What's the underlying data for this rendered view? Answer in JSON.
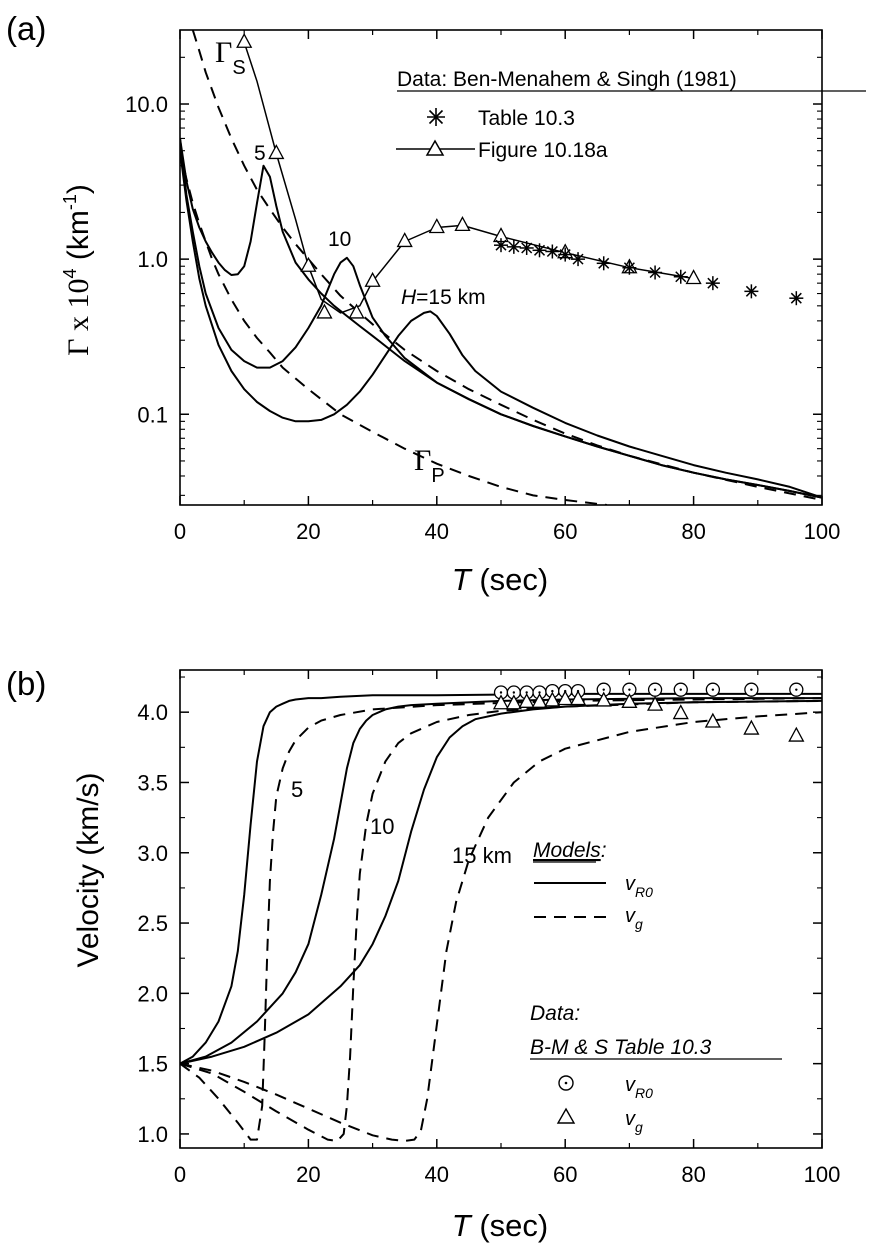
{
  "chart_data": [
    {
      "panel": "(a)",
      "type": "line",
      "xlabel_italic": "T",
      "xlabel_rest": " (sec)",
      "ylabel": "Γ x 10",
      "ylabel_exp": "4",
      "ylabel_unit": " (km",
      "ylabel_unit_exp": "-1",
      "ylabel_close": ")",
      "xlim": [
        0,
        100
      ],
      "ylim": [
        0.026,
        30
      ],
      "yscale": "log",
      "xticks": [
        0,
        20,
        40,
        60,
        80,
        100
      ],
      "xticklabels": [
        "0",
        "20",
        "40",
        "60",
        "80",
        "100"
      ],
      "yticks": [
        0.1,
        1.0,
        10.0
      ],
      "yticklabels": [
        "0.1",
        "1.0",
        "10.0"
      ],
      "legend_title": "Data: Ben-Menahem & Singh (1981)",
      "legend_items": [
        "Table 10.3",
        "Figure 10.18a"
      ],
      "annotations": {
        "gamma_s": "Γ",
        "gamma_s_sub": "S",
        "gamma_p": "Γ",
        "gamma_p_sub": "P",
        "h5": "5",
        "h10": "10",
        "h15_italic": "H",
        "h15_rest": "=15 km"
      },
      "series": [
        {
          "style": "solid",
          "x": [
            0,
            1,
            2,
            3,
            4,
            5,
            6,
            7,
            8,
            9,
            10,
            11,
            12,
            13,
            14,
            15,
            16,
            18,
            20,
            22,
            24,
            26,
            28,
            30,
            35,
            40,
            45,
            50,
            55,
            60,
            65,
            70,
            75,
            80,
            85,
            90,
            95,
            100
          ],
          "y": [
            6,
            3.2,
            2.1,
            1.6,
            1.3,
            1.1,
            0.95,
            0.85,
            0.79,
            0.8,
            0.9,
            1.3,
            2.3,
            4.0,
            3.4,
            2.2,
            1.5,
            0.95,
            0.74,
            0.6,
            0.5,
            0.43,
            0.37,
            0.32,
            0.22,
            0.16,
            0.125,
            0.1,
            0.084,
            0.072,
            0.062,
            0.054,
            0.047,
            0.042,
            0.038,
            0.035,
            0.032,
            0.029
          ]
        },
        {
          "style": "solid",
          "x": [
            0,
            1,
            2,
            3,
            4,
            6,
            8,
            10,
            12,
            14,
            16,
            18,
            20,
            22,
            24,
            25,
            26,
            27,
            28,
            30,
            32,
            35,
            40,
            45,
            50,
            55,
            60,
            65,
            70,
            75,
            80,
            85,
            90,
            95,
            100
          ],
          "y": [
            6,
            2.6,
            1.5,
            0.9,
            0.6,
            0.36,
            0.26,
            0.22,
            0.2,
            0.2,
            0.22,
            0.27,
            0.36,
            0.5,
            0.8,
            0.95,
            1.02,
            0.9,
            0.68,
            0.42,
            0.32,
            0.23,
            0.16,
            0.125,
            0.1,
            0.084,
            0.072,
            0.062,
            0.054,
            0.047,
            0.042,
            0.038,
            0.035,
            0.032,
            0.029
          ]
        },
        {
          "style": "solid",
          "x": [
            0,
            1,
            2,
            3,
            4,
            6,
            8,
            10,
            12,
            14,
            16,
            18,
            20,
            22,
            24,
            26,
            28,
            30,
            32,
            34,
            36,
            38,
            39,
            40,
            42,
            44,
            46,
            50,
            55,
            60,
            65,
            70,
            75,
            80,
            85,
            90,
            95,
            100
          ],
          "y": [
            5,
            2.4,
            1.3,
            0.75,
            0.5,
            0.28,
            0.19,
            0.145,
            0.12,
            0.105,
            0.095,
            0.09,
            0.09,
            0.092,
            0.1,
            0.115,
            0.14,
            0.18,
            0.24,
            0.32,
            0.4,
            0.45,
            0.46,
            0.43,
            0.33,
            0.24,
            0.19,
            0.14,
            0.11,
            0.088,
            0.073,
            0.062,
            0.054,
            0.047,
            0.042,
            0.038,
            0.034,
            0.029
          ]
        },
        {
          "style": "dashed",
          "x": [
            2,
            3,
            4,
            6,
            8,
            10,
            12,
            14,
            16,
            18,
            20,
            22,
            25,
            30,
            35,
            40,
            45,
            50,
            55,
            60,
            65,
            70,
            80,
            90,
            100
          ],
          "y": [
            30,
            22,
            16,
            9.5,
            6,
            4,
            2.8,
            2.1,
            1.6,
            1.25,
            1.0,
            0.8,
            0.58,
            0.38,
            0.26,
            0.19,
            0.145,
            0.115,
            0.092,
            0.075,
            0.063,
            0.054,
            0.042,
            0.034,
            0.028
          ]
        },
        {
          "style": "dashed",
          "x": [
            0,
            1,
            2,
            3,
            4,
            5,
            6,
            8,
            10,
            12,
            14,
            16,
            18,
            20,
            22,
            25,
            30,
            35,
            40,
            45,
            50,
            55,
            60,
            66.5
          ],
          "y": [
            5,
            3.3,
            2.3,
            1.7,
            1.3,
            1.0,
            0.8,
            0.55,
            0.4,
            0.31,
            0.25,
            0.2,
            0.17,
            0.145,
            0.125,
            0.1,
            0.077,
            0.06,
            0.048,
            0.04,
            0.034,
            0.03,
            0.028,
            0.026
          ]
        },
        {
          "style": "solid",
          "marker": "triangle",
          "x": [
            10,
            12,
            15,
            18,
            20,
            22,
            25,
            28,
            30,
            35,
            40,
            44,
            50,
            60,
            70,
            80
          ],
          "y": [
            25,
            14,
            4.8,
            1.8,
            0.9,
            0.55,
            0.45,
            0.5,
            0.72,
            1.3,
            1.6,
            1.65,
            1.4,
            1.1,
            0.88,
            0.75
          ],
          "markers_x": [
            10,
            15,
            20,
            22.5,
            27.5,
            30,
            35,
            40,
            44,
            50,
            60,
            70,
            80
          ],
          "markers_y": [
            25,
            4.8,
            0.9,
            0.45,
            0.45,
            0.72,
            1.3,
            1.6,
            1.65,
            1.4,
            1.1,
            0.88,
            0.75
          ]
        },
        {
          "style": "none",
          "marker": "asterisk",
          "x": [
            50,
            52,
            54,
            56,
            58,
            60,
            62,
            66,
            70,
            74,
            78,
            83,
            89,
            96
          ],
          "y": [
            1.23,
            1.2,
            1.18,
            1.14,
            1.12,
            1.07,
            1.0,
            0.94,
            0.88,
            0.82,
            0.77,
            0.7,
            0.62,
            0.56
          ]
        }
      ]
    },
    {
      "panel": "(b)",
      "type": "line",
      "xlabel_italic": "T",
      "xlabel_rest": " (sec)",
      "ylabel": "Velocity (km/s)",
      "xlim": [
        0,
        100
      ],
      "ylim": [
        0.9,
        4.3
      ],
      "xticks": [
        0,
        20,
        40,
        60,
        80,
        100
      ],
      "xticklabels": [
        "0",
        "20",
        "40",
        "60",
        "80",
        "100"
      ],
      "yticks": [
        1.0,
        1.5,
        2.0,
        2.5,
        3.0,
        3.5,
        4.0
      ],
      "yticklabels": [
        "1.0",
        "1.5",
        "2.0",
        "2.5",
        "3.0",
        "3.5",
        "4.0"
      ],
      "annotations": {
        "h5": "5",
        "h10": "10",
        "h15": "15 km"
      },
      "legend": {
        "models_title": "Models",
        "models_colon": ":",
        "model_items": [
          {
            "sym": "v",
            "sub": "R0"
          },
          {
            "sym": "v",
            "sub": "g"
          }
        ],
        "data_title": "Data",
        "data_colon": ":",
        "data_source": "B-M & S Table 10.3",
        "data_items": [
          {
            "sym": "v",
            "sub": "R0"
          },
          {
            "sym": "v",
            "sub": "g"
          }
        ]
      },
      "series": [
        {
          "style": "solid",
          "x": [
            0,
            2,
            4,
            6,
            8,
            9,
            10,
            11,
            12,
            13,
            14,
            15,
            16,
            17,
            18,
            20,
            22,
            25,
            30,
            40,
            60,
            80,
            100
          ],
          "y": [
            1.5,
            1.55,
            1.65,
            1.8,
            2.05,
            2.3,
            2.7,
            3.2,
            3.65,
            3.9,
            4.0,
            4.04,
            4.06,
            4.08,
            4.09,
            4.1,
            4.1,
            4.11,
            4.12,
            4.12,
            4.13,
            4.13,
            4.13
          ]
        },
        {
          "style": "solid",
          "x": [
            0,
            4,
            8,
            12,
            16,
            18,
            20,
            22,
            24,
            25,
            26,
            27,
            28,
            29,
            30,
            32,
            34,
            36,
            40,
            50,
            60,
            80,
            100
          ],
          "y": [
            1.5,
            1.55,
            1.65,
            1.8,
            2.0,
            2.15,
            2.35,
            2.7,
            3.1,
            3.35,
            3.6,
            3.78,
            3.88,
            3.94,
            3.98,
            4.02,
            4.04,
            4.05,
            4.06,
            4.08,
            4.09,
            4.1,
            4.1
          ]
        },
        {
          "style": "solid",
          "x": [
            0,
            5,
            10,
            15,
            20,
            25,
            28,
            30,
            32,
            34,
            36,
            38,
            40,
            42,
            44,
            46,
            50,
            55,
            60,
            70,
            80,
            100
          ],
          "y": [
            1.5,
            1.55,
            1.62,
            1.72,
            1.85,
            2.05,
            2.2,
            2.35,
            2.55,
            2.8,
            3.15,
            3.45,
            3.68,
            3.82,
            3.9,
            3.95,
            3.99,
            4.02,
            4.04,
            4.06,
            4.07,
            4.08
          ]
        },
        {
          "style": "dashed",
          "x": [
            0,
            3,
            6,
            9,
            11,
            12,
            12.8,
            13.2,
            13.6,
            14,
            14.5,
            15,
            16,
            17,
            18,
            20,
            22,
            25,
            30,
            40,
            60,
            80,
            100
          ],
          "y": [
            1.5,
            1.4,
            1.25,
            1.08,
            0.96,
            0.96,
            1.2,
            1.7,
            2.3,
            2.8,
            3.15,
            3.4,
            3.6,
            3.72,
            3.8,
            3.89,
            3.94,
            3.98,
            4.02,
            4.05,
            4.08,
            4.09,
            4.1
          ]
        },
        {
          "style": "dashed",
          "x": [
            0,
            5,
            10,
            15,
            20,
            23,
            24.5,
            25.5,
            26,
            26.5,
            27,
            27.5,
            28,
            29,
            30,
            32,
            34,
            36,
            40,
            45,
            50,
            60,
            80,
            100
          ],
          "y": [
            1.5,
            1.43,
            1.3,
            1.16,
            1.03,
            0.96,
            0.95,
            1.0,
            1.2,
            1.55,
            2.05,
            2.5,
            2.85,
            3.2,
            3.42,
            3.65,
            3.78,
            3.85,
            3.93,
            3.98,
            4.01,
            4.04,
            4.07,
            4.08
          ]
        },
        {
          "style": "dashed",
          "x": [
            0,
            5,
            10,
            15,
            20,
            25,
            30,
            33,
            35,
            36.5,
            37.5,
            38.5,
            39.5,
            40.5,
            41.5,
            43,
            45,
            48,
            52,
            56,
            60,
            70,
            80,
            90,
            100
          ],
          "y": [
            1.5,
            1.45,
            1.37,
            1.28,
            1.18,
            1.08,
            0.99,
            0.96,
            0.95,
            0.96,
            1.02,
            1.25,
            1.6,
            1.95,
            2.3,
            2.65,
            2.95,
            3.25,
            3.5,
            3.65,
            3.74,
            3.86,
            3.93,
            3.97,
            4.0
          ]
        },
        {
          "style": "none",
          "marker": "circle",
          "x": [
            50,
            52,
            54,
            56,
            58,
            60,
            62,
            66,
            70,
            74,
            78,
            83,
            89,
            96
          ],
          "y": [
            4.14,
            4.14,
            4.14,
            4.14,
            4.15,
            4.15,
            4.15,
            4.16,
            4.16,
            4.16,
            4.16,
            4.16,
            4.16,
            4.16
          ]
        },
        {
          "style": "none",
          "marker": "triangle",
          "x": [
            50,
            52,
            54,
            56,
            58,
            60,
            62,
            66,
            70,
            74,
            78,
            83,
            89,
            96
          ],
          "y": [
            4.06,
            4.06,
            4.07,
            4.07,
            4.08,
            4.09,
            4.09,
            4.08,
            4.07,
            4.05,
            3.99,
            3.93,
            3.88,
            3.83
          ]
        }
      ]
    }
  ]
}
